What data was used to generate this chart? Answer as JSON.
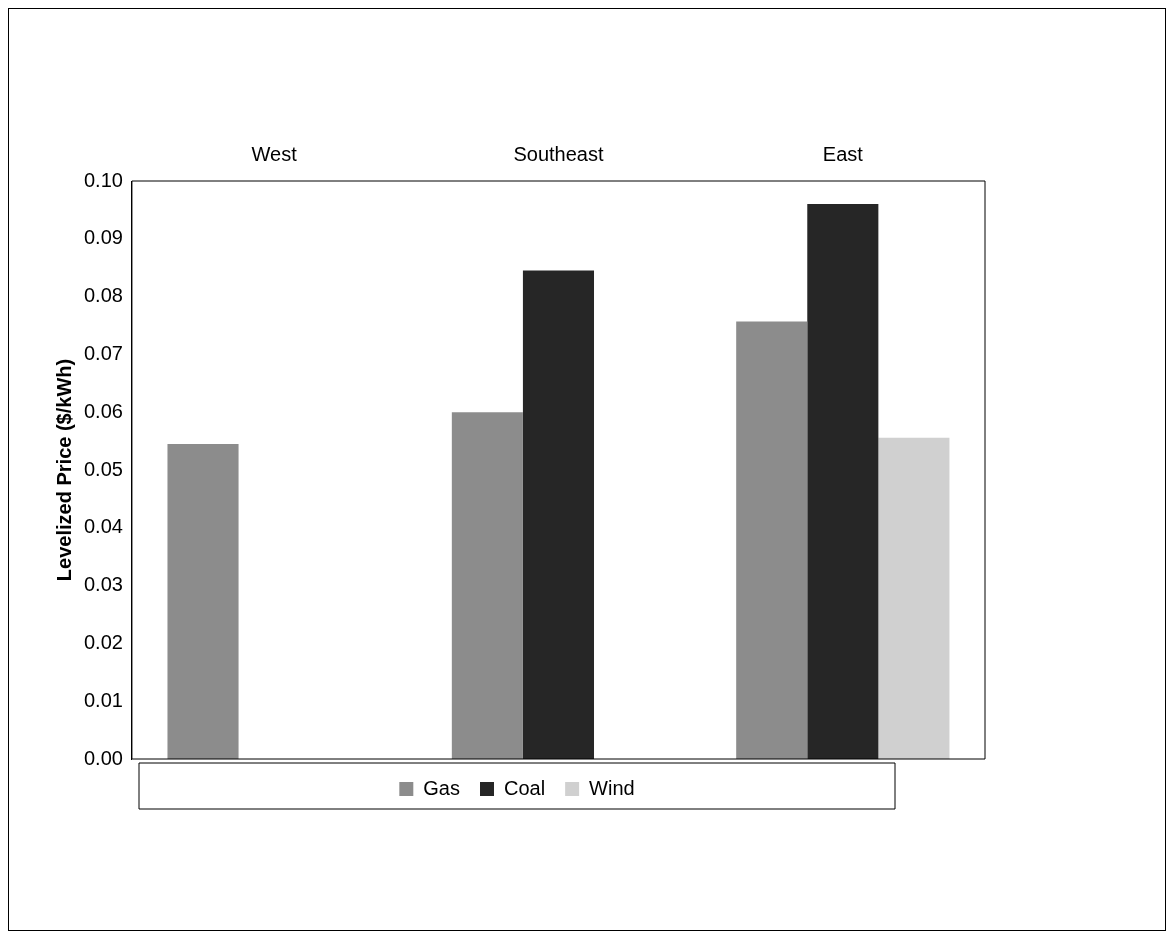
{
  "chart_data": {
    "type": "bar",
    "ylabel": "Levelized Price ($/kWh)",
    "categories": [
      "West",
      "Southeast",
      "East"
    ],
    "series": [
      {
        "name": "Gas",
        "color": "#8c8c8c",
        "values": [
          0.0545,
          0.06,
          0.0757
        ]
      },
      {
        "name": "Coal",
        "color": "#262626",
        "values": [
          null,
          0.0845,
          0.096
        ]
      },
      {
        "name": "Wind",
        "color": "#d0d0d0",
        "values": [
          null,
          null,
          0.0556
        ]
      }
    ],
    "ylim": [
      0,
      0.1
    ],
    "yticks": [
      {
        "value": 0,
        "label": "0.00"
      },
      {
        "value": 0.01,
        "label": "0.01"
      },
      {
        "value": 0.02,
        "label": "0.02"
      },
      {
        "value": 0.03,
        "label": "0.03"
      },
      {
        "value": 0.04,
        "label": "0.04"
      },
      {
        "value": 0.05,
        "label": "0.05"
      },
      {
        "value": 0.06,
        "label": "0.06"
      },
      {
        "value": 0.07,
        "label": "0.07"
      },
      {
        "value": 0.08,
        "label": "0.08"
      },
      {
        "value": 0.09,
        "label": "0.09"
      },
      {
        "value": 0.1,
        "label": "0.10"
      }
    ],
    "grid": false,
    "legend": "bottom"
  }
}
